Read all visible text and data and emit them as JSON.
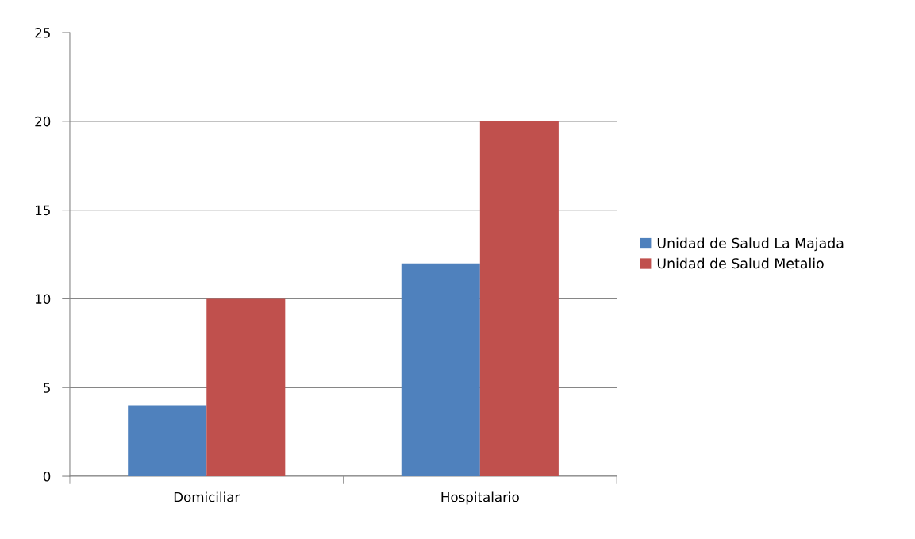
{
  "chart_data": {
    "type": "bar",
    "categories": [
      "Domiciliar",
      "Hospitalario"
    ],
    "series": [
      {
        "name": "Unidad de Salud La Majada",
        "color": "#4f81bd",
        "values": [
          4,
          12
        ]
      },
      {
        "name": "Unidad de Salud Metalio",
        "color": "#c0504d",
        "values": [
          10,
          20
        ]
      }
    ],
    "ylim": [
      0,
      25
    ],
    "yticks": [
      0,
      5,
      10,
      15,
      20,
      25
    ],
    "grid": "y",
    "legend": "right"
  }
}
